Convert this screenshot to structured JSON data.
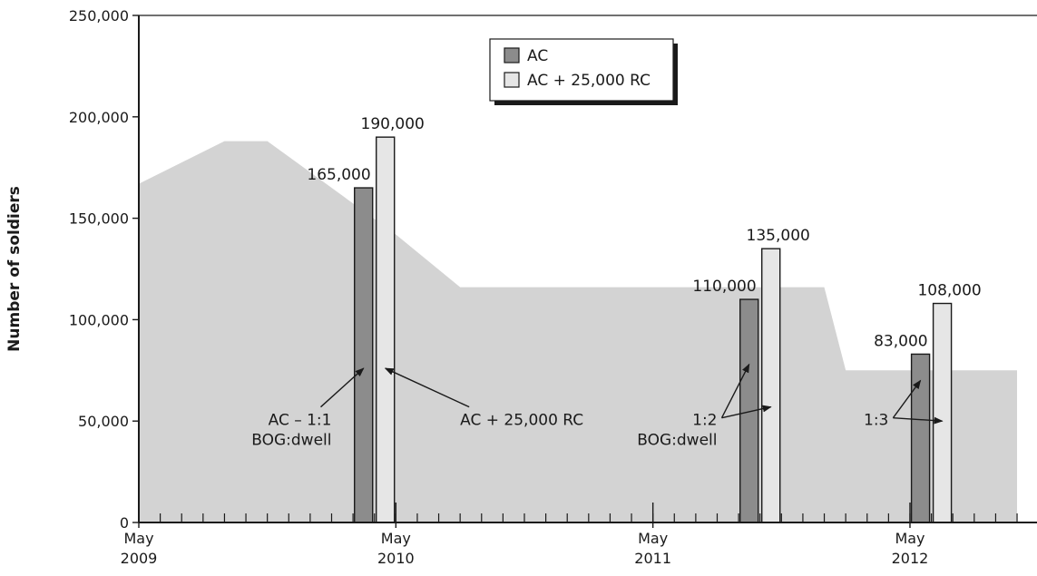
{
  "chart_data": {
    "type": "bar",
    "ylabel": "Number of soldiers",
    "xlabel": "",
    "ylim": [
      0,
      250000
    ],
    "y_ticks": [
      0,
      50000,
      100000,
      150000,
      200000,
      250000
    ],
    "y_tick_labels": [
      "0",
      "50,000",
      "100,000",
      "150,000",
      "200,000",
      "250,000"
    ],
    "x_range": [
      "2009-05",
      "2012-10"
    ],
    "x_ticks": [
      {
        "month": "2009-05",
        "label_top": "May",
        "label_bottom": "2009"
      },
      {
        "month": "2010-05",
        "label_top": "May",
        "label_bottom": "2010"
      },
      {
        "month": "2011-05",
        "label_top": "May",
        "label_bottom": "2011"
      },
      {
        "month": "2012-05",
        "label_top": "May",
        "label_bottom": "2012"
      }
    ],
    "grid": false,
    "legend": {
      "position": "top-center",
      "entries": [
        {
          "label": "AC",
          "color": "#8c8c8c"
        },
        {
          "label": "AC + 25,000 RC",
          "color": "#e6e6e6"
        }
      ]
    },
    "background_area": {
      "color": "#d3d3d3",
      "points": [
        {
          "x": "2009-05",
          "y": 167000
        },
        {
          "x": "2009-09",
          "y": 188000
        },
        {
          "x": "2009-11",
          "y": 188000
        },
        {
          "x": "2010-05",
          "y": 142000
        },
        {
          "x": "2010-08",
          "y": 116000
        },
        {
          "x": "2012-01",
          "y": 116000
        },
        {
          "x": "2012-02",
          "y": 75000
        },
        {
          "x": "2012-10",
          "y": 75000
        }
      ]
    },
    "series": [
      {
        "name": "AC",
        "color": "#8c8c8c",
        "points": [
          {
            "x": "2010-04",
            "y": 165000
          },
          {
            "x": "2011-10",
            "y": 110000
          },
          {
            "x": "2012-06",
            "y": 83000
          }
        ],
        "labels": [
          "165,000",
          "110,000",
          "83,000"
        ]
      },
      {
        "name": "AC + 25,000 RC",
        "color": "#e6e6e6",
        "points": [
          {
            "x": "2010-04",
            "y": 190000
          },
          {
            "x": "2011-10",
            "y": 135000
          },
          {
            "x": "2012-06",
            "y": 108000
          }
        ],
        "labels": [
          "190,000",
          "135,000",
          "108,000"
        ]
      }
    ],
    "annotations": [
      {
        "lines": [
          "AC – 1:1",
          "BOG:dwell"
        ],
        "anchor": "end",
        "x": "2010-02",
        "y": 48000,
        "arrows_to": [
          {
            "group": 0,
            "series": 0,
            "y": 76000
          }
        ]
      },
      {
        "lines": [
          "AC + 25,000 RC"
        ],
        "anchor": "start",
        "x": "2010-08",
        "y": 48000,
        "arrows_to": [
          {
            "group": 0,
            "series": 1,
            "y": 76000
          }
        ]
      },
      {
        "lines": [
          "1:2",
          "BOG:dwell"
        ],
        "anchor": "end",
        "x": "2011-08",
        "y": 48000,
        "arrows_to": [
          {
            "group": 1,
            "series": 0,
            "y": 78000
          },
          {
            "group": 1,
            "series": 1,
            "y": 57000
          }
        ]
      },
      {
        "lines": [
          "1:3"
        ],
        "anchor": "end",
        "x": "2012-04",
        "y": 48000,
        "arrows_to": [
          {
            "group": 2,
            "series": 0,
            "y": 70000
          },
          {
            "group": 2,
            "series": 1,
            "y": 50000
          }
        ]
      }
    ]
  }
}
